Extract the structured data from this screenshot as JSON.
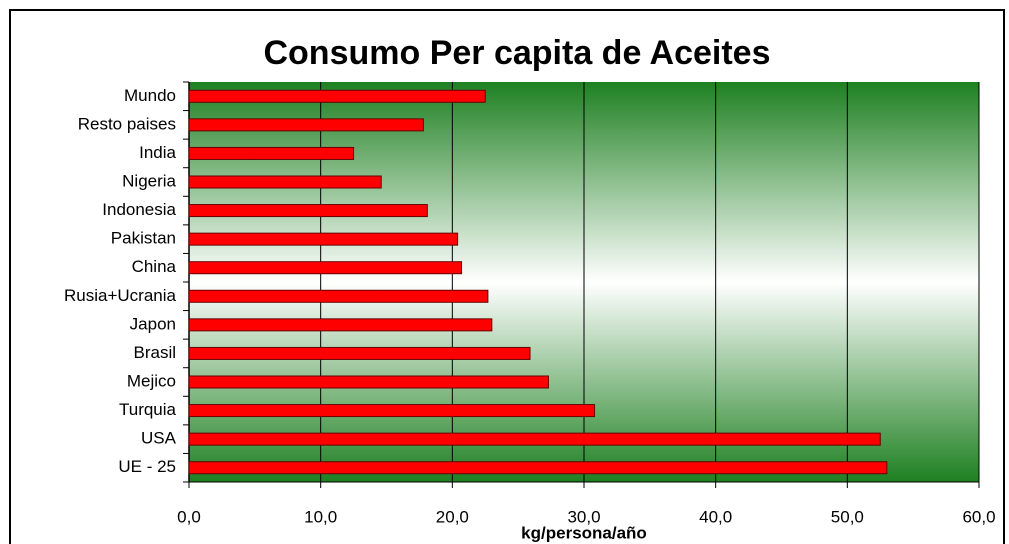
{
  "chart_data": {
    "type": "bar",
    "orientation": "horizontal",
    "title": "Consumo Per capita de Aceites",
    "x_label": "kg/persona/año",
    "categories": [
      "Mundo",
      "Resto paises",
      "India",
      "Nigeria",
      "Indonesia",
      "Pakistan",
      "China",
      "Rusia+Ucrania",
      "Japon",
      "Brasil",
      "Mejico",
      "Turquia",
      "USA",
      "UE - 25"
    ],
    "values": [
      22.5,
      17.8,
      12.5,
      14.6,
      18.1,
      20.4,
      20.7,
      22.7,
      23.0,
      25.9,
      27.3,
      30.8,
      52.5,
      53.0
    ],
    "color": "#ff0000",
    "xlim": [
      0,
      60
    ],
    "xticks": [
      {
        "value": 0,
        "label": "0,0"
      },
      {
        "value": 10,
        "label": "10,0"
      },
      {
        "value": 20,
        "label": "20,0"
      },
      {
        "value": 30,
        "label": "30,0"
      },
      {
        "value": 40,
        "label": "40,0"
      },
      {
        "value": 50,
        "label": "50,0"
      },
      {
        "value": 60,
        "label": "60,0"
      }
    ],
    "grid": true
  }
}
